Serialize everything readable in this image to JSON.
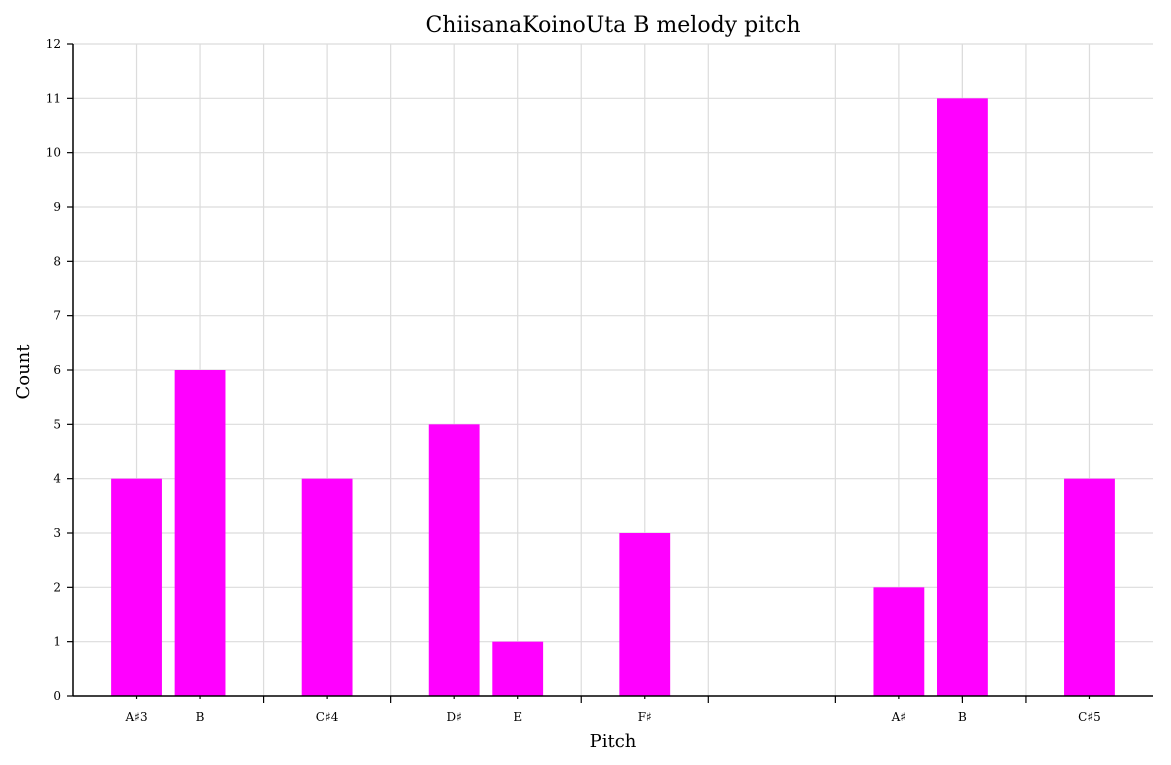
{
  "chart_data": {
    "type": "bar",
    "title": "ChiisanaKoinoUta B melody pitch",
    "xlabel": "Pitch",
    "ylabel": "Count",
    "ylim": [
      0,
      12
    ],
    "yticks": [
      0,
      1,
      2,
      3,
      4,
      5,
      6,
      7,
      8,
      9,
      10,
      11,
      12
    ],
    "grid": true,
    "bar_color": "#ff00ff",
    "x_semitone_range": [
      57,
      74
    ],
    "major_semitones": [
      60,
      62,
      65,
      67,
      69,
      71,
      72
    ],
    "categories": [
      "A♯3",
      "B",
      "C♯4",
      "D♯",
      "E",
      "F♯",
      "A♯",
      "B",
      "C♯5"
    ],
    "semitones": [
      58,
      59,
      61,
      63,
      64,
      66,
      70,
      71,
      73
    ],
    "values": [
      4,
      6,
      4,
      5,
      1,
      3,
      2,
      11,
      4
    ]
  }
}
